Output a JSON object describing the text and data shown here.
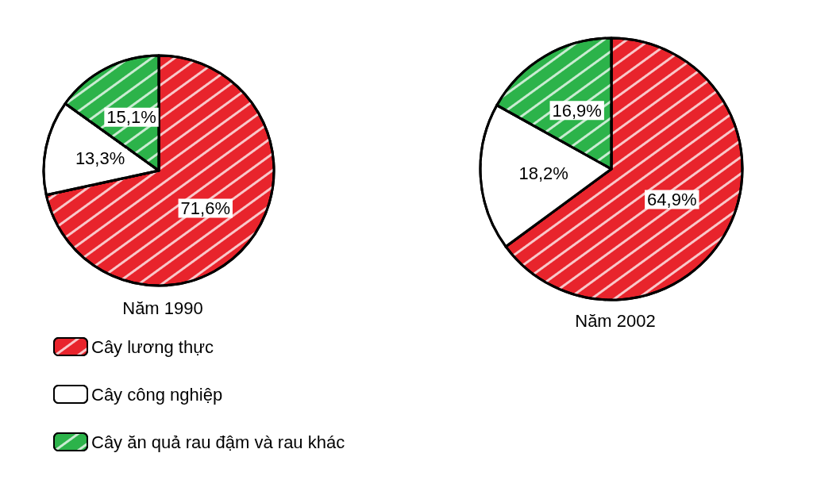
{
  "chart_data": [
    {
      "type": "pie",
      "title": "Năm 1990",
      "categories": [
        "Cây lương thực",
        "Cây công nghiệp",
        "Cây ăn quả rau đậm và rau khác"
      ],
      "values": [
        71.6,
        13.3,
        15.1
      ],
      "value_labels": [
        "71,6%",
        "13,3%",
        "15,1%"
      ],
      "colors": [
        "#e8242c",
        "#ffffff",
        "#2cb34a"
      ],
      "legend": "bottom"
    },
    {
      "type": "pie",
      "title": "Năm 2002",
      "categories": [
        null,
        null,
        null
      ],
      "values": [
        64.9,
        18.2,
        16.9
      ],
      "value_labels": [
        "64,9%",
        "18,2%",
        "16,9%"
      ],
      "colors": [
        "#e8242c",
        "#ffffff",
        "#2cb34a"
      ]
    }
  ]
}
